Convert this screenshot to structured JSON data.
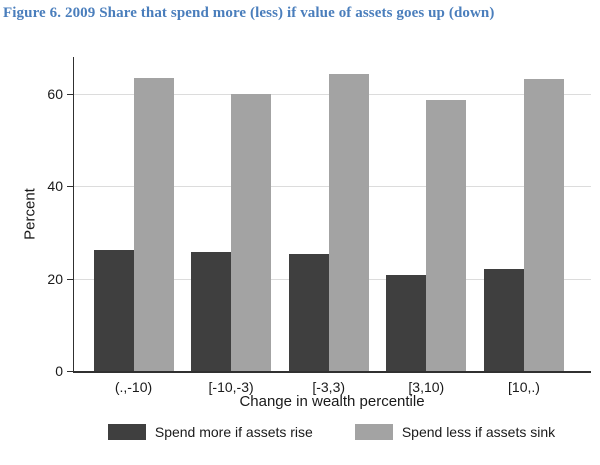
{
  "figure": {
    "title": "Figure 6. 2009 Share that spend more (less) if value of assets goes up (down)",
    "title_color": "#4a7ebc"
  },
  "chart_data": {
    "type": "bar",
    "categories": [
      "(.,-10)",
      "[-10,-3)",
      "[-3,3)",
      "[3,10)",
      "[10,.)"
    ],
    "series": [
      {
        "name": "Spend more if assets rise",
        "color": "#3f3f3f",
        "values": [
          26.2,
          25.7,
          25.4,
          20.7,
          22.0
        ]
      },
      {
        "name": "Spend less if assets sink",
        "color": "#a3a3a3",
        "values": [
          63.5,
          60.0,
          64.4,
          58.7,
          63.2
        ]
      }
    ],
    "title": "",
    "xlabel": "Change in wealth percentile",
    "ylabel": "Percent",
    "ylim": [
      0,
      68
    ],
    "yticks": [
      0,
      20,
      40,
      60
    ],
    "grid": "horizontal",
    "gridline_color": "#dcdcdc",
    "axis_color": "#303030",
    "legend_position": "bottom"
  }
}
